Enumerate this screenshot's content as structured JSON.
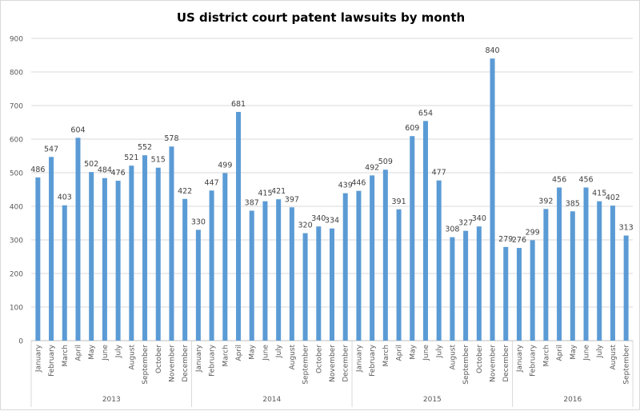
{
  "chart_data": {
    "type": "bar",
    "title": "US district court patent lawsuits by month",
    "xlabel": "",
    "ylabel": "",
    "ylim": [
      0,
      900
    ],
    "yticks": [
      0,
      100,
      200,
      300,
      400,
      500,
      600,
      700,
      800,
      900
    ],
    "grid": true,
    "legend": "none",
    "bar_color": "#5b9bd5",
    "groups": [
      {
        "year": "2013",
        "months": [
          "January",
          "February",
          "March",
          "April",
          "May",
          "June",
          "July",
          "August",
          "September",
          "October",
          "November",
          "December"
        ],
        "values": [
          486,
          547,
          403,
          604,
          502,
          484,
          476,
          521,
          552,
          515,
          578,
          422
        ]
      },
      {
        "year": "2014",
        "months": [
          "January",
          "February",
          "March",
          "April",
          "May",
          "June",
          "July",
          "August",
          "September",
          "October",
          "November",
          "December"
        ],
        "values": [
          330,
          447,
          499,
          681,
          387,
          415,
          421,
          397,
          320,
          340,
          334,
          439
        ]
      },
      {
        "year": "2015",
        "months": [
          "January",
          "February",
          "March",
          "April",
          "May",
          "June",
          "July",
          "August",
          "September",
          "October",
          "November",
          "December"
        ],
        "values": [
          446,
          492,
          509,
          391,
          609,
          654,
          477,
          308,
          327,
          340,
          840,
          279
        ]
      },
      {
        "year": "2016",
        "months": [
          "January",
          "February",
          "March",
          "April",
          "May",
          "June",
          "July",
          "August",
          "September"
        ],
        "values": [
          276,
          299,
          392,
          456,
          385,
          456,
          415,
          402,
          313
        ]
      }
    ]
  }
}
